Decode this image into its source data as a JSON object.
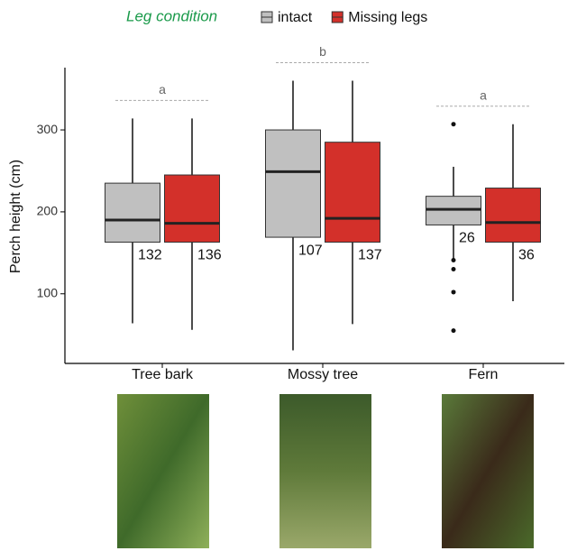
{
  "chart_data": {
    "type": "box",
    "legend_title": "Leg condition",
    "ylabel": "Perch height (cm)",
    "categories": [
      "Tree bark",
      "Mossy tree",
      "Fern"
    ],
    "ylim": [
      15,
      376
    ],
    "yticks": [
      100,
      200,
      300
    ],
    "significance_letters": [
      "a",
      "b",
      "a"
    ],
    "series": [
      {
        "name": "intact",
        "color": "#c0c0c0",
        "whisker_low": [
          64,
          31,
          140
        ],
        "q1": [
          163,
          169,
          184
        ],
        "median": [
          190,
          249,
          203
        ],
        "q3": [
          235,
          300,
          219
        ],
        "whisker_high": [
          314,
          360,
          255
        ],
        "outliers": [
          [],
          [],
          [
            307,
            141,
            130,
            102,
            55
          ]
        ],
        "n": [
          "132",
          "107",
          "26"
        ]
      },
      {
        "name": "Missing legs",
        "color": "#d3302a",
        "whisker_low": [
          56,
          63,
          91
        ],
        "q1": [
          163,
          163,
          163
        ],
        "median": [
          186,
          192,
          187
        ],
        "q3": [
          245,
          285,
          229
        ],
        "whisker_high": [
          314,
          360,
          307
        ],
        "outliers": [
          [],
          [],
          []
        ],
        "n": [
          "136",
          "137",
          "36"
        ]
      }
    ]
  }
}
